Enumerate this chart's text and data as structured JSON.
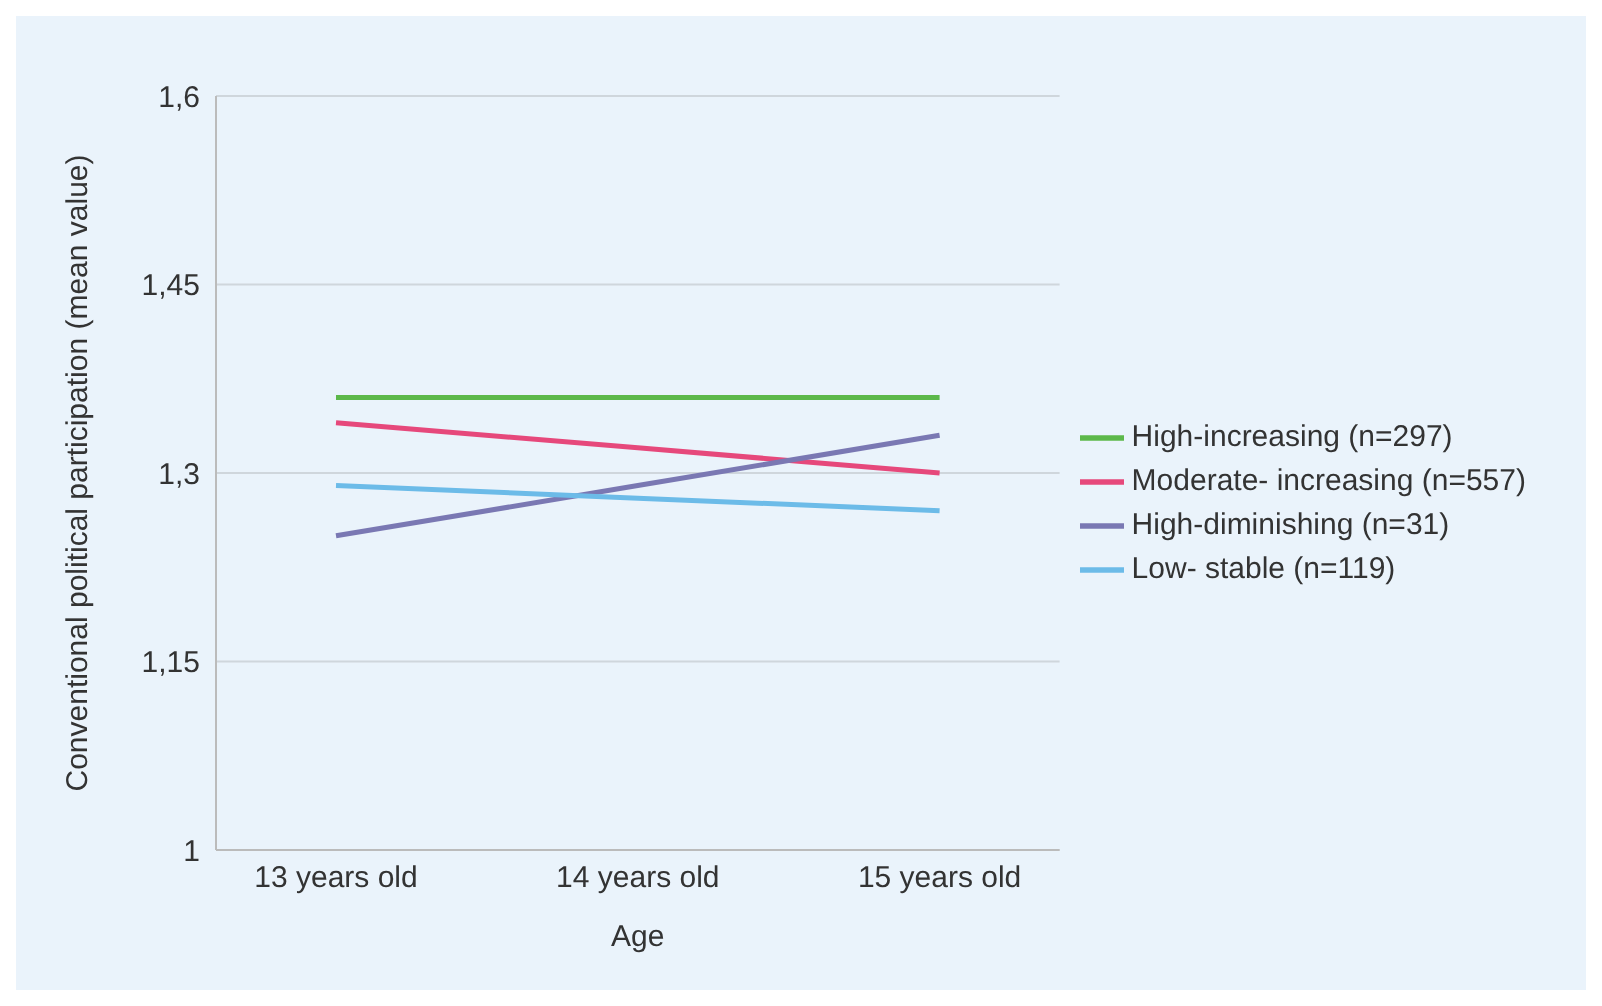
{
  "chart_data": {
    "type": "line",
    "xlabel": "Age",
    "ylabel": "Conventional political participation (mean value)",
    "categories": [
      "13 years old",
      "14 years old",
      "15 years old"
    ],
    "series": [
      {
        "name": "High-increasing (n=297)",
        "color": "#5cb84a",
        "values": [
          1.36,
          1.36,
          1.36
        ]
      },
      {
        "name": "Moderate- increasing (n=557)",
        "color": "#e6487b",
        "values": [
          1.34,
          1.32,
          1.3
        ]
      },
      {
        "name": "High-diminishing (n=31)",
        "color": "#7a78b3",
        "values": [
          1.25,
          1.29,
          1.33
        ]
      },
      {
        "name": "Low- stable (n=119)",
        "color": "#6cbbe8",
        "values": [
          1.29,
          1.28,
          1.27
        ]
      }
    ],
    "ylim": [
      1,
      1.6
    ],
    "yticks": [
      {
        "value": 1,
        "label": "1"
      },
      {
        "value": 1.15,
        "label": "1,15"
      },
      {
        "value": 1.3,
        "label": "1,3"
      },
      {
        "value": 1.45,
        "label": "1,45"
      },
      {
        "value": 1.6,
        "label": "1,6"
      }
    ],
    "grid": "y",
    "legend": "right",
    "marker": "none",
    "line_style": "solid"
  }
}
